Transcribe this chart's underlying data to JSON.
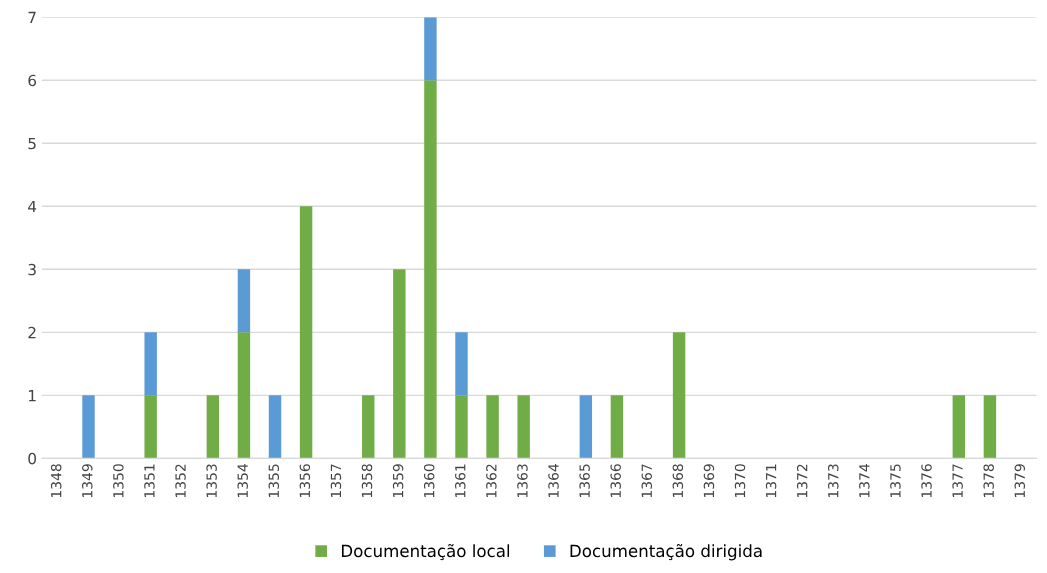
{
  "chart_data": {
    "type": "bar",
    "stacked": true,
    "categories": [
      "1348",
      "1349",
      "1350",
      "1351",
      "1352",
      "1353",
      "1354",
      "1355",
      "1356",
      "1357",
      "1358",
      "1359",
      "1360",
      "1361",
      "1362",
      "1363",
      "1364",
      "1365",
      "1366",
      "1367",
      "1368",
      "1369",
      "1370",
      "1371",
      "1372",
      "1373",
      "1374",
      "1375",
      "1376",
      "1377",
      "1378",
      "1379"
    ],
    "series": [
      {
        "name": "Documentação local",
        "color": "#70ad47",
        "values": [
          0,
          0,
          0,
          1,
          0,
          1,
          2,
          0,
          4,
          0,
          1,
          3,
          6,
          1,
          1,
          1,
          0,
          0,
          1,
          0,
          2,
          0,
          0,
          0,
          0,
          0,
          0,
          0,
          0,
          1,
          1,
          0
        ]
      },
      {
        "name": "Documentação dirigida",
        "color": "#5b9bd5",
        "values": [
          0,
          1,
          0,
          1,
          0,
          0,
          1,
          1,
          0,
          0,
          0,
          0,
          1,
          1,
          0,
          0,
          0,
          1,
          0,
          0,
          0,
          0,
          0,
          0,
          0,
          0,
          0,
          0,
          0,
          0,
          0,
          0
        ]
      }
    ],
    "ylim": [
      0,
      7
    ],
    "yticks": [
      0,
      1,
      2,
      3,
      4,
      5,
      6,
      7
    ],
    "grid": "y",
    "legend": "bottom"
  }
}
